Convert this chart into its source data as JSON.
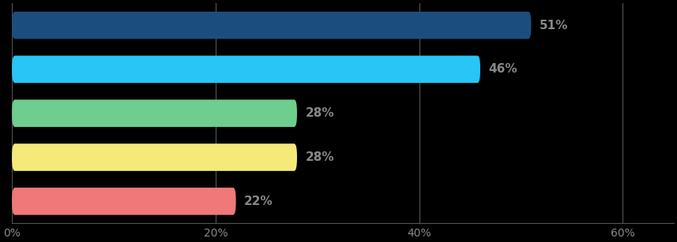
{
  "values": [
    51,
    46,
    28,
    28,
    22
  ],
  "labels": [
    "51%",
    "46%",
    "28%",
    "28%",
    "22%"
  ],
  "bar_colors": [
    "#1b4e7e",
    "#29c5f6",
    "#6dce8d",
    "#f5e97a",
    "#f07878"
  ],
  "background_color": "#000000",
  "label_color": "#888888",
  "tick_color": "#888888",
  "grid_color": "#555555",
  "bar_height": 0.62,
  "xlim": [
    0,
    65
  ],
  "xticks": [
    0,
    20,
    40,
    60
  ],
  "xticklabels": [
    "0%",
    "20%",
    "40%",
    "60%"
  ],
  "label_fontsize": 11,
  "tick_fontsize": 10,
  "figsize": [
    8.57,
    3.07
  ],
  "dpi": 100
}
